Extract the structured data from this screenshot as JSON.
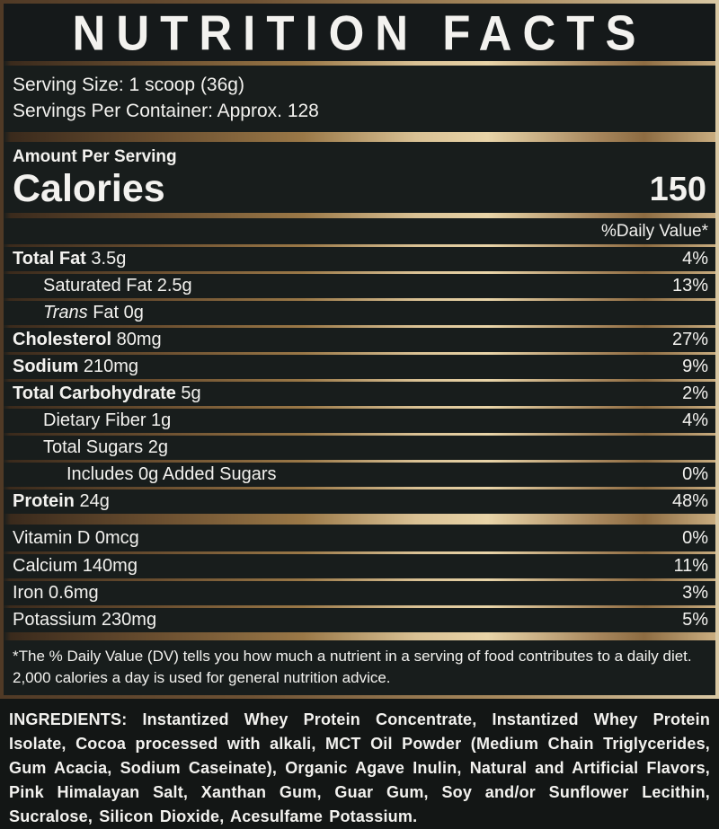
{
  "title": "NUTRITION FACTS",
  "serving": {
    "size": "Serving Size: 1 scoop (36g)",
    "per_container": "Servings Per Container: Approx. 128"
  },
  "calories": {
    "header": "Amount Per Serving",
    "label": "Calories",
    "value": "150"
  },
  "daily_value_header": "%Daily Value*",
  "nutrients": [
    {
      "name": "Total Fat",
      "amount": "3.5g",
      "dv": "4%",
      "bold": true,
      "italic": false,
      "indent": 0
    },
    {
      "name": "Saturated Fat",
      "amount": "2.5g",
      "dv": "13%",
      "bold": false,
      "italic": false,
      "indent": 1
    },
    {
      "name": "Trans",
      "amount": "Fat 0g",
      "dv": "",
      "bold": false,
      "italic": true,
      "indent": 1
    },
    {
      "name": "Cholesterol",
      "amount": "80mg",
      "dv": "27%",
      "bold": true,
      "italic": false,
      "indent": 0
    },
    {
      "name": "Sodium",
      "amount": "210mg",
      "dv": "9%",
      "bold": true,
      "italic": false,
      "indent": 0
    },
    {
      "name": "Total Carbohydrate",
      "amount": "5g",
      "dv": "2%",
      "bold": true,
      "italic": false,
      "indent": 0
    },
    {
      "name": "Dietary Fiber",
      "amount": "1g",
      "dv": "4%",
      "bold": false,
      "italic": false,
      "indent": 1
    },
    {
      "name": "Total Sugars",
      "amount": "2g",
      "dv": "",
      "bold": false,
      "italic": false,
      "indent": 1
    },
    {
      "name": "Includes 0g Added Sugars",
      "amount": "",
      "dv": "0%",
      "bold": false,
      "italic": false,
      "indent": 2
    },
    {
      "name": "Protein",
      "amount": "24g",
      "dv": "48%",
      "bold": true,
      "italic": false,
      "indent": 0
    }
  ],
  "vitamins": [
    {
      "name": "Vitamin D 0mcg",
      "dv": "0%"
    },
    {
      "name": "Calcium 140mg",
      "dv": "11%"
    },
    {
      "name": "Iron 0.6mg",
      "dv": "3%"
    },
    {
      "name": "Potassium 230mg",
      "dv": "5%"
    }
  ],
  "footnote": "*The % Daily Value (DV) tells you how much a nutrient in a serving of food contributes to a daily diet. 2,000 calories a day is used for general nutrition advice.",
  "ingredients": {
    "label": "INGREDIENTS:",
    "text": "Instantized Whey Protein Concentrate, Instantized Whey Protein Isolate, Cocoa processed with alkali, MCT Oil Powder (Medium Chain Triglycerides, Gum Acacia, Sodium Caseinate), Organic Agave Inulin, Natural and Artificial Flavors, Pink Himalayan Salt, Xanthan Gum, Guar Gum, Soy and/or Sunflower Lecithin, Sucralose, Silicon Dioxide, Acesulfame Potassium."
  },
  "colors": {
    "background": "#181d1c",
    "page_background": "#131615",
    "text": "#f3f2ef",
    "gold_light": "#e8d4a8",
    "gold_mid": "#9a7847",
    "bronze_dark": "#3a2a1c"
  }
}
